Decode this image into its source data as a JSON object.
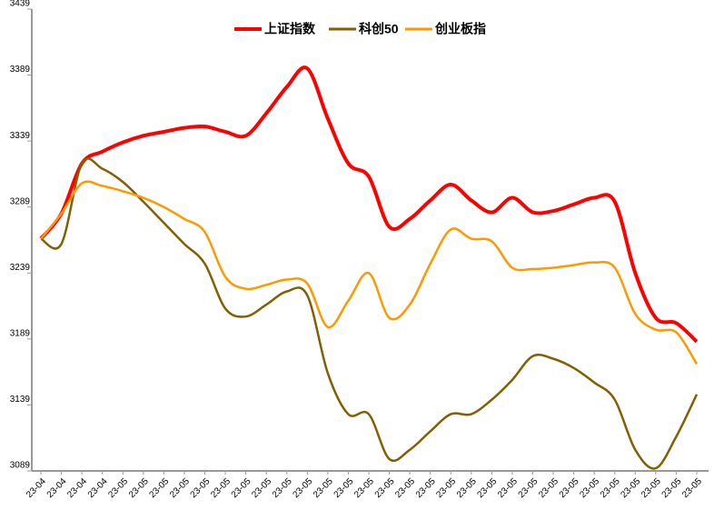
{
  "chart_data": {
    "type": "line",
    "categories": [
      "23-04",
      "23-04",
      "23-04",
      "23-04",
      "23-05",
      "23-05",
      "23-05",
      "23-05",
      "23-05",
      "23-05",
      "23-05",
      "23-05",
      "23-05",
      "23-05",
      "23-05",
      "23-05",
      "23-05",
      "23-05",
      "23-05",
      "23-05",
      "23-05",
      "23-05",
      "23-05",
      "23-05",
      "23-05",
      "23-05",
      "23-05",
      "23-05",
      "23-05",
      "23-05",
      "23-05",
      "23-05",
      "23-05"
    ],
    "series": [
      {
        "name": "上证指数",
        "color": "#ff0000",
        "values": [
          3265,
          3284,
          3322,
          3331,
          3338,
          3343,
          3346,
          3349,
          3350,
          3346,
          3343,
          3360,
          3380,
          3394,
          3356,
          3322,
          3312,
          3274,
          3280,
          3294,
          3306,
          3294,
          3285,
          3296,
          3285,
          3286,
          3291,
          3296,
          3293,
          3239,
          3205,
          3201,
          3187
        ]
      },
      {
        "name": "科创50",
        "color": "#806000",
        "values": [
          3265,
          3261,
          3322,
          3318,
          3308,
          3293,
          3277,
          3261,
          3246,
          3212,
          3206,
          3215,
          3225,
          3222,
          3163,
          3132,
          3132,
          3098,
          3105,
          3119,
          3132,
          3132,
          3143,
          3158,
          3176,
          3174,
          3167,
          3156,
          3143,
          3105,
          3091,
          3115,
          3147
        ]
      },
      {
        "name": "创业板指",
        "color": "#ff9900",
        "values": [
          3265,
          3284,
          3307,
          3305,
          3301,
          3296,
          3289,
          3280,
          3270,
          3236,
          3227,
          3230,
          3234,
          3231,
          3198,
          3218,
          3239,
          3205,
          3215,
          3246,
          3272,
          3265,
          3263,
          3243,
          3242,
          3243,
          3245,
          3247,
          3243,
          3208,
          3196,
          3194,
          3170
        ]
      }
    ],
    "ylim": [
      3089,
      3439
    ],
    "yticks": [
      3089,
      3139,
      3189,
      3239,
      3289,
      3339,
      3389,
      3439
    ],
    "legend": "top"
  }
}
